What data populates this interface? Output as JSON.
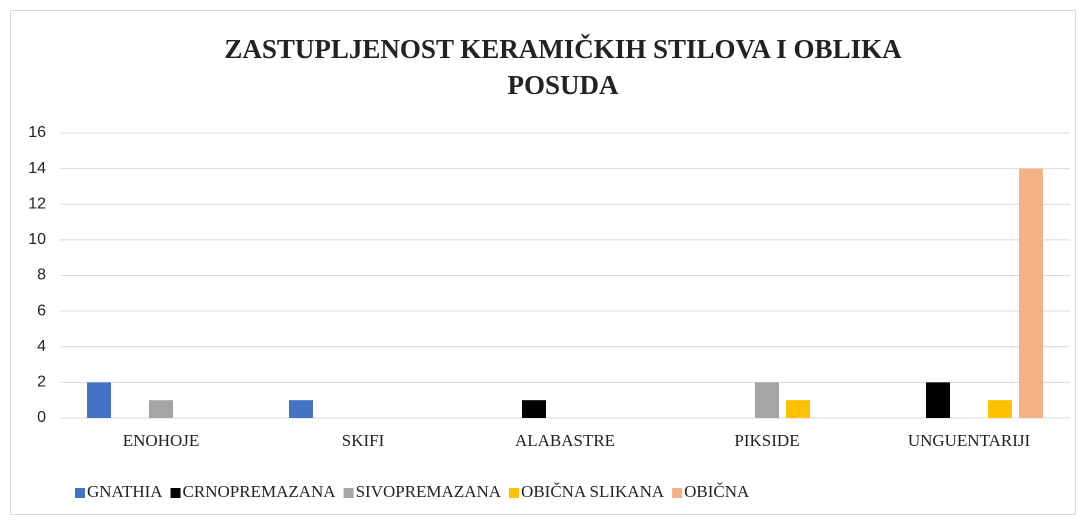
{
  "chart_data": {
    "type": "bar",
    "title": [
      "ZASTUPLJENOST KERAMIČKIH STILOVA I OBLIKA",
      "POSUDA"
    ],
    "categories": [
      "ENOHOJE",
      "SKIFI",
      "ALABASTRE",
      "PIKSIDE",
      "UNGUENTARIJI"
    ],
    "series": [
      {
        "name": "GNATHIA",
        "color": "#4472c4",
        "values": [
          2,
          1,
          0,
          0,
          0
        ]
      },
      {
        "name": "CRNOPREMAZANA",
        "color": "#000000",
        "values": [
          0,
          0,
          1,
          0,
          2
        ]
      },
      {
        "name": "SIVOPREMAZANA",
        "color": "#a5a5a5",
        "values": [
          1,
          0,
          0,
          2,
          0
        ]
      },
      {
        "name": "OBIČNA SLIKANA",
        "color": "#ffc000",
        "values": [
          0,
          0,
          0,
          1,
          1
        ]
      },
      {
        "name": "OBIČNA",
        "color": "#f4b183",
        "values": [
          0,
          0,
          0,
          0,
          14
        ]
      }
    ],
    "ylim": [
      0,
      16
    ],
    "yticks": [
      0,
      2,
      4,
      6,
      8,
      10,
      12,
      14,
      16
    ],
    "grid": true,
    "legend": "bottom"
  }
}
